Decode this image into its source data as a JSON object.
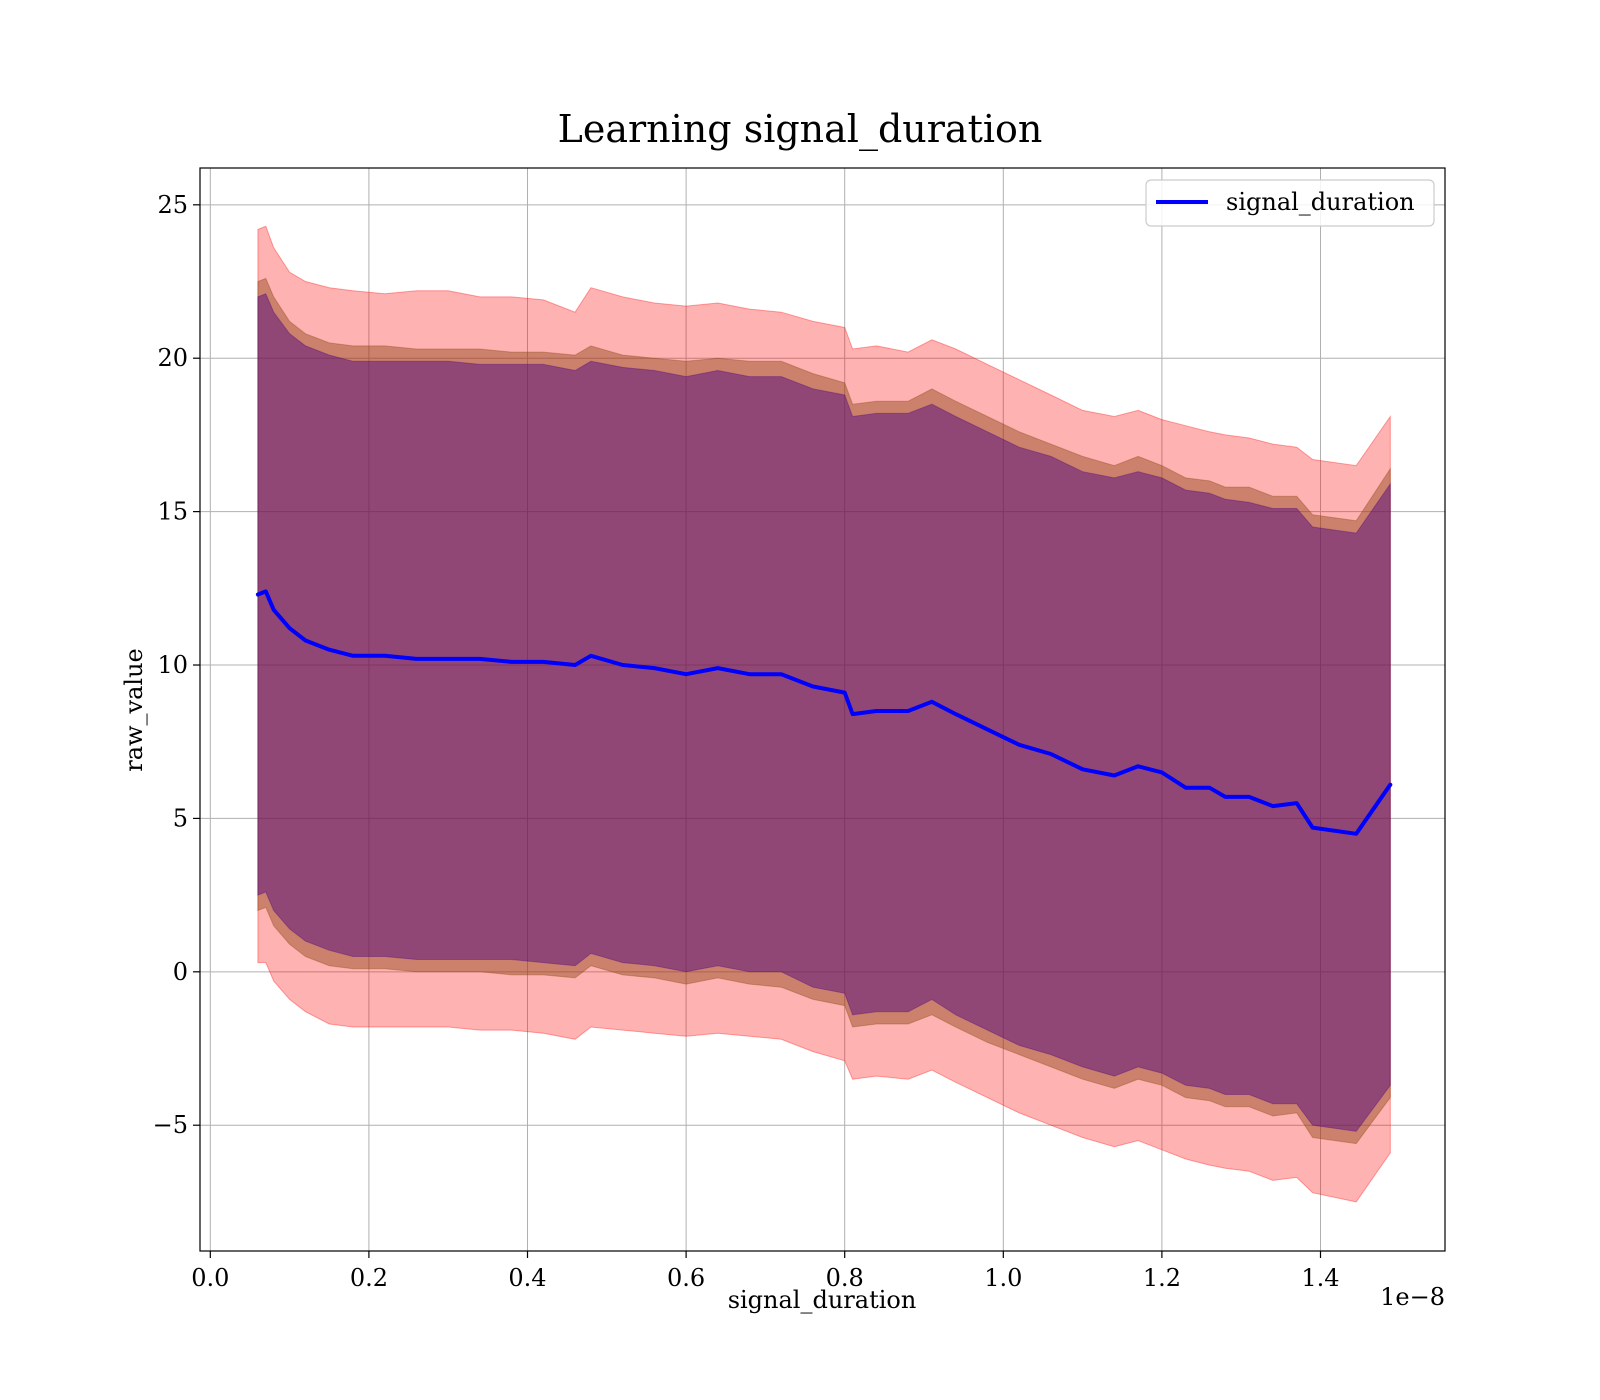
{
  "chart_data": {
    "type": "line",
    "title": "Learning signal_duration",
    "xlabel": "signal_duration",
    "ylabel": "raw_value",
    "x_offset_label": "1e−8",
    "xlim": [
      -0.013,
      1.557
    ],
    "ylim": [
      -9.1,
      26.2
    ],
    "x_ticks": [
      0.0,
      0.2,
      0.4,
      0.6,
      0.8,
      1.0,
      1.2,
      1.4
    ],
    "x_tick_labels": [
      "0.0",
      "0.2",
      "0.4",
      "0.6",
      "0.8",
      "1.0",
      "1.2",
      "1.4"
    ],
    "y_ticks": [
      -5,
      0,
      5,
      10,
      15,
      20,
      25
    ],
    "y_tick_labels": [
      "−5",
      "0",
      "5",
      "10",
      "15",
      "20",
      "25"
    ],
    "grid": true,
    "legend": {
      "position": "top-right",
      "entries": [
        "signal_duration"
      ]
    },
    "colors": {
      "line": "#0000ff",
      "band_outer": "#ff0000",
      "band_middle": "#8b4513",
      "band_inner": "#4b0082"
    },
    "x": [
      0.06,
      0.07,
      0.08,
      0.1,
      0.12,
      0.15,
      0.18,
      0.22,
      0.26,
      0.3,
      0.34,
      0.38,
      0.42,
      0.46,
      0.48,
      0.52,
      0.56,
      0.6,
      0.64,
      0.68,
      0.72,
      0.76,
      0.8,
      0.81,
      0.84,
      0.88,
      0.91,
      0.94,
      0.98,
      1.02,
      1.06,
      1.1,
      1.14,
      1.17,
      1.2,
      1.23,
      1.26,
      1.28,
      1.31,
      1.34,
      1.37,
      1.39,
      1.445,
      1.488
    ],
    "series": [
      {
        "name": "signal_duration",
        "values": [
          12.3,
          12.4,
          11.8,
          11.2,
          10.8,
          10.5,
          10.3,
          10.3,
          10.2,
          10.2,
          10.2,
          10.1,
          10.1,
          10.0,
          10.3,
          10.0,
          9.9,
          9.7,
          9.9,
          9.7,
          9.7,
          9.3,
          9.1,
          8.4,
          8.5,
          8.5,
          8.8,
          8.4,
          7.9,
          7.4,
          7.1,
          6.6,
          6.4,
          6.7,
          6.5,
          6.0,
          6.0,
          5.7,
          5.7,
          5.4,
          5.5,
          4.7,
          4.5,
          6.1
        ]
      }
    ],
    "bands": [
      {
        "upper": [
          24.2,
          24.3,
          23.6,
          22.8,
          22.5,
          22.3,
          22.2,
          22.1,
          22.2,
          22.2,
          22.0,
          22.0,
          21.9,
          21.5,
          22.3,
          22.0,
          21.8,
          21.7,
          21.8,
          21.6,
          21.5,
          21.2,
          21.0,
          20.3,
          20.4,
          20.2,
          20.6,
          20.3,
          19.8,
          19.3,
          18.8,
          18.3,
          18.1,
          18.3,
          18.0,
          17.8,
          17.6,
          17.5,
          17.4,
          17.2,
          17.1,
          16.7,
          16.5,
          18.1
        ],
        "lower": [
          0.3,
          0.3,
          -0.3,
          -0.9,
          -1.3,
          -1.7,
          -1.8,
          -1.8,
          -1.8,
          -1.8,
          -1.9,
          -1.9,
          -2.0,
          -2.2,
          -1.8,
          -1.9,
          -2.0,
          -2.1,
          -2.0,
          -2.1,
          -2.2,
          -2.6,
          -2.9,
          -3.5,
          -3.4,
          -3.5,
          -3.2,
          -3.6,
          -4.1,
          -4.6,
          -5.0,
          -5.4,
          -5.7,
          -5.5,
          -5.8,
          -6.1,
          -6.3,
          -6.4,
          -6.5,
          -6.8,
          -6.7,
          -7.2,
          -7.5,
          -5.9
        ]
      },
      {
        "upper": [
          22.5,
          22.6,
          22.0,
          21.2,
          20.8,
          20.5,
          20.4,
          20.4,
          20.3,
          20.3,
          20.3,
          20.2,
          20.2,
          20.1,
          20.4,
          20.1,
          20.0,
          19.9,
          20.0,
          19.9,
          19.9,
          19.5,
          19.2,
          18.5,
          18.6,
          18.6,
          19.0,
          18.6,
          18.1,
          17.6,
          17.2,
          16.8,
          16.5,
          16.8,
          16.5,
          16.1,
          16.0,
          15.8,
          15.8,
          15.5,
          15.5,
          14.9,
          14.7,
          16.4
        ],
        "lower": [
          2.0,
          2.1,
          1.5,
          0.9,
          0.5,
          0.2,
          0.1,
          0.1,
          0.0,
          0.0,
          0.0,
          -0.1,
          -0.1,
          -0.2,
          0.2,
          -0.1,
          -0.2,
          -0.4,
          -0.2,
          -0.4,
          -0.5,
          -0.9,
          -1.1,
          -1.8,
          -1.7,
          -1.7,
          -1.4,
          -1.8,
          -2.3,
          -2.7,
          -3.1,
          -3.5,
          -3.8,
          -3.5,
          -3.7,
          -4.1,
          -4.2,
          -4.4,
          -4.4,
          -4.7,
          -4.6,
          -5.4,
          -5.6,
          -4.1
        ]
      },
      {
        "upper": [
          22.0,
          22.1,
          21.5,
          20.8,
          20.4,
          20.1,
          19.9,
          19.9,
          19.9,
          19.9,
          19.8,
          19.8,
          19.8,
          19.6,
          19.9,
          19.7,
          19.6,
          19.4,
          19.6,
          19.4,
          19.4,
          19.0,
          18.8,
          18.1,
          18.2,
          18.2,
          18.5,
          18.1,
          17.6,
          17.1,
          16.8,
          16.3,
          16.1,
          16.3,
          16.1,
          15.7,
          15.6,
          15.4,
          15.3,
          15.1,
          15.1,
          14.5,
          14.3,
          15.9
        ],
        "lower": [
          2.5,
          2.6,
          2.0,
          1.4,
          1.0,
          0.7,
          0.5,
          0.5,
          0.4,
          0.4,
          0.4,
          0.4,
          0.3,
          0.2,
          0.6,
          0.3,
          0.2,
          0.0,
          0.2,
          0.0,
          0.0,
          -0.5,
          -0.7,
          -1.4,
          -1.3,
          -1.3,
          -0.9,
          -1.4,
          -1.9,
          -2.4,
          -2.7,
          -3.1,
          -3.4,
          -3.1,
          -3.3,
          -3.7,
          -3.8,
          -4.0,
          -4.0,
          -4.3,
          -4.3,
          -5.0,
          -5.2,
          -3.7
        ]
      }
    ]
  }
}
